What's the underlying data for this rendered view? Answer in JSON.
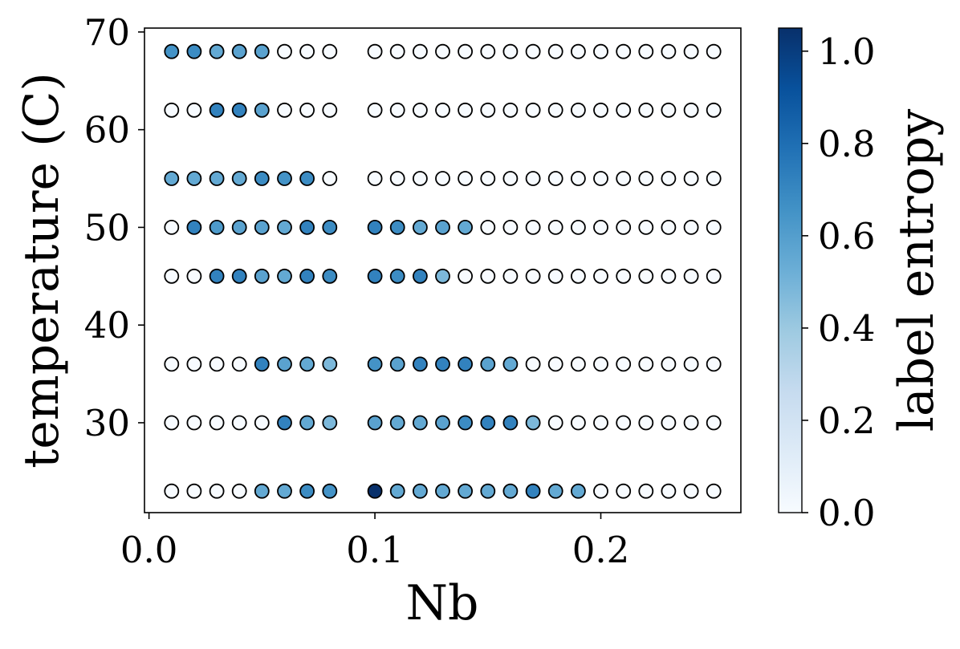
{
  "chart_data": {
    "type": "scatter",
    "title": "",
    "xlabel": "Nb",
    "ylabel": "temperature (C)",
    "xlim": [
      -0.002,
      0.262
    ],
    "ylim": [
      20.8,
      70.4
    ],
    "xticks": [
      0.0,
      0.1,
      0.2
    ],
    "xtick_labels": [
      "0.0",
      "0.1",
      "0.2"
    ],
    "yticks": [
      30,
      40,
      50,
      60,
      70
    ],
    "ytick_labels": [
      "30",
      "40",
      "50",
      "60",
      "70"
    ],
    "grid": false,
    "colormap": "Blues",
    "colorbar": {
      "label": "label entropy",
      "range": [
        0.0,
        1.05
      ],
      "ticks": [
        0.0,
        0.2,
        0.4,
        0.6,
        0.8,
        1.0
      ],
      "tick_labels": [
        "0.0",
        "0.2",
        "0.4",
        "0.6",
        "0.8",
        "1.0"
      ]
    },
    "point_edge_color": "#000000",
    "x_left_block": [
      0.01,
      0.02,
      0.03,
      0.04,
      0.05,
      0.06,
      0.07,
      0.08
    ],
    "x_right_block": [
      0.1,
      0.11,
      0.12,
      0.13,
      0.14,
      0.15,
      0.16,
      0.17,
      0.18,
      0.19,
      0.2,
      0.21,
      0.22,
      0.23,
      0.24,
      0.25
    ],
    "rows": [
      {
        "temperature": 68,
        "left": [
          0.65,
          0.68,
          0.55,
          0.58,
          0.58,
          0,
          0,
          0
        ],
        "right": [
          0,
          0,
          0,
          0,
          0,
          0,
          0,
          0,
          0,
          0,
          0,
          0,
          0,
          0,
          0,
          0
        ]
      },
      {
        "temperature": 62,
        "left": [
          0,
          0,
          0.72,
          0.72,
          0.58,
          0,
          0,
          0
        ],
        "right": [
          0,
          0,
          0,
          0,
          0,
          0,
          0,
          0,
          0,
          0,
          0,
          0,
          0,
          0,
          0,
          0
        ]
      },
      {
        "temperature": 55,
        "left": [
          0.55,
          0.55,
          0.55,
          0.55,
          0.68,
          0.65,
          0.68,
          0
        ],
        "right": [
          0,
          0,
          0,
          0,
          0,
          0,
          0,
          0,
          0,
          0,
          0,
          0,
          0,
          0,
          0,
          0
        ]
      },
      {
        "temperature": 50,
        "left": [
          0,
          0.72,
          0.62,
          0.58,
          0.58,
          0.55,
          0.72,
          0.68
        ],
        "right": [
          0.72,
          0.68,
          0.55,
          0.58,
          0.55,
          0,
          0,
          0,
          0,
          0,
          0,
          0,
          0,
          0,
          0,
          0
        ]
      },
      {
        "temperature": 45,
        "left": [
          0,
          0,
          0.72,
          0.72,
          0.58,
          0.55,
          0.72,
          0.68
        ],
        "right": [
          0.72,
          0.68,
          0.72,
          0.48,
          0,
          0,
          0,
          0,
          0,
          0,
          0,
          0,
          0,
          0,
          0,
          0
        ]
      },
      {
        "temperature": 36,
        "left": [
          0,
          0,
          0,
          0,
          0.72,
          0.58,
          0.55,
          0.48
        ],
        "right": [
          0.65,
          0.58,
          0.72,
          0.72,
          0.72,
          0.58,
          0.55,
          0,
          0,
          0,
          0,
          0,
          0,
          0,
          0,
          0
        ]
      },
      {
        "temperature": 30,
        "left": [
          0,
          0,
          0,
          0,
          0,
          0.72,
          0.55,
          0.48
        ],
        "right": [
          0.58,
          0.55,
          0.55,
          0.58,
          0.68,
          0.72,
          0.72,
          0.48,
          0,
          0,
          0,
          0,
          0,
          0,
          0,
          0
        ]
      },
      {
        "temperature": 23,
        "left": [
          0,
          0,
          0,
          0,
          0.55,
          0.55,
          0.68,
          0.65
        ],
        "right": [
          1.05,
          0.55,
          0.55,
          0.55,
          0.55,
          0.55,
          0.55,
          0.72,
          0.55,
          0.55,
          0,
          0,
          0,
          0,
          0,
          0
        ]
      }
    ]
  }
}
